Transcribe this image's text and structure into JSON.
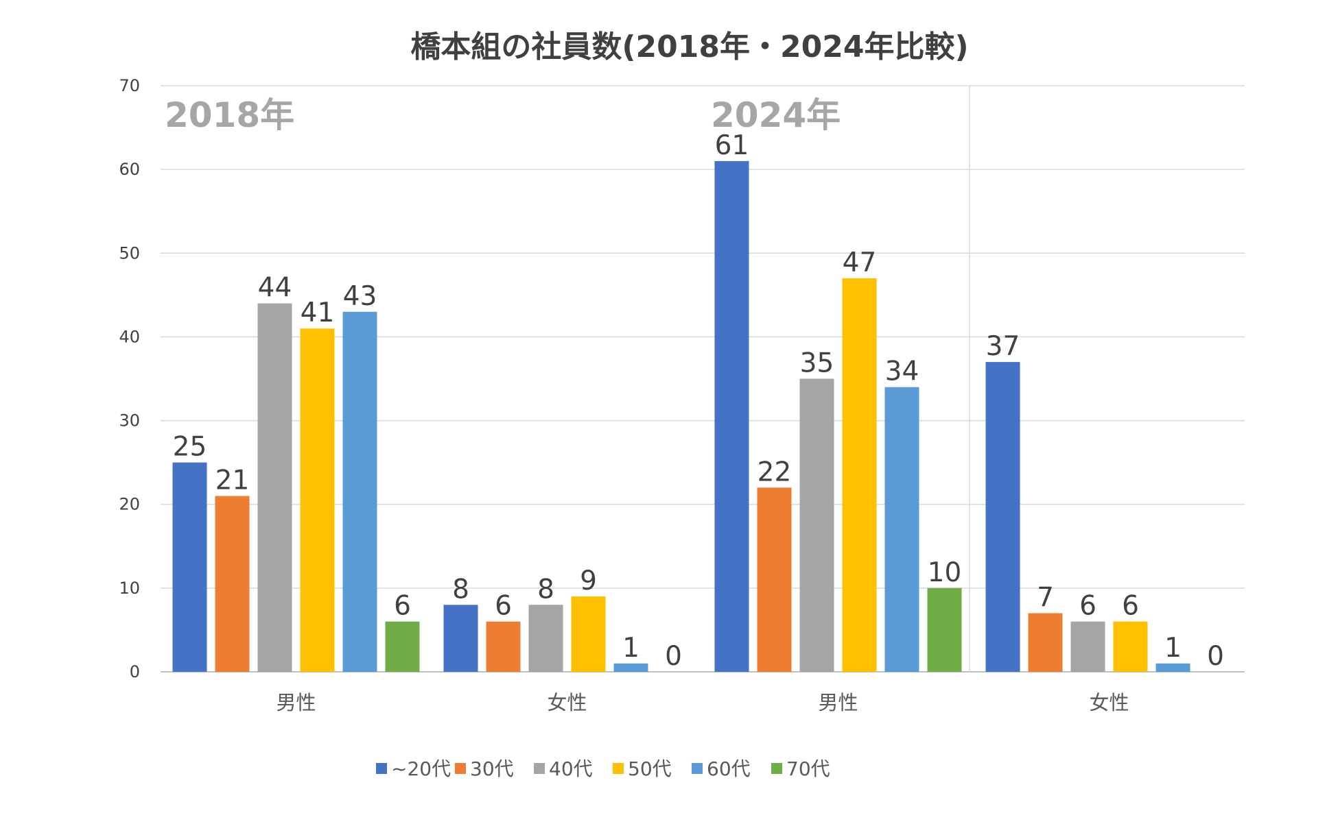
{
  "chart_data": {
    "type": "bar",
    "title": "橋本組の社員数(2018年・2024年比較)",
    "year_labels": [
      "2018年",
      "2024年"
    ],
    "categories": [
      "男性",
      "女性",
      "男性",
      "女性"
    ],
    "ylim": [
      0,
      70
    ],
    "yticks": [
      0,
      10,
      20,
      30,
      40,
      50,
      60,
      70
    ],
    "grid": true,
    "legend_position": "bottom",
    "series": [
      {
        "name": "~20代",
        "color": "#4472c4",
        "values": [
          25,
          8,
          61,
          37
        ]
      },
      {
        "name": "30代",
        "color": "#ed7d31",
        "values": [
          21,
          6,
          22,
          7
        ]
      },
      {
        "name": "40代",
        "color": "#a5a5a5",
        "values": [
          44,
          8,
          35,
          6
        ]
      },
      {
        "name": "50代",
        "color": "#ffc000",
        "values": [
          41,
          9,
          47,
          6
        ]
      },
      {
        "name": "60代",
        "color": "#5b9bd5",
        "values": [
          43,
          1,
          34,
          1
        ]
      },
      {
        "name": "70代",
        "color": "#70ad47",
        "values": [
          6,
          0,
          10,
          0
        ]
      }
    ]
  }
}
